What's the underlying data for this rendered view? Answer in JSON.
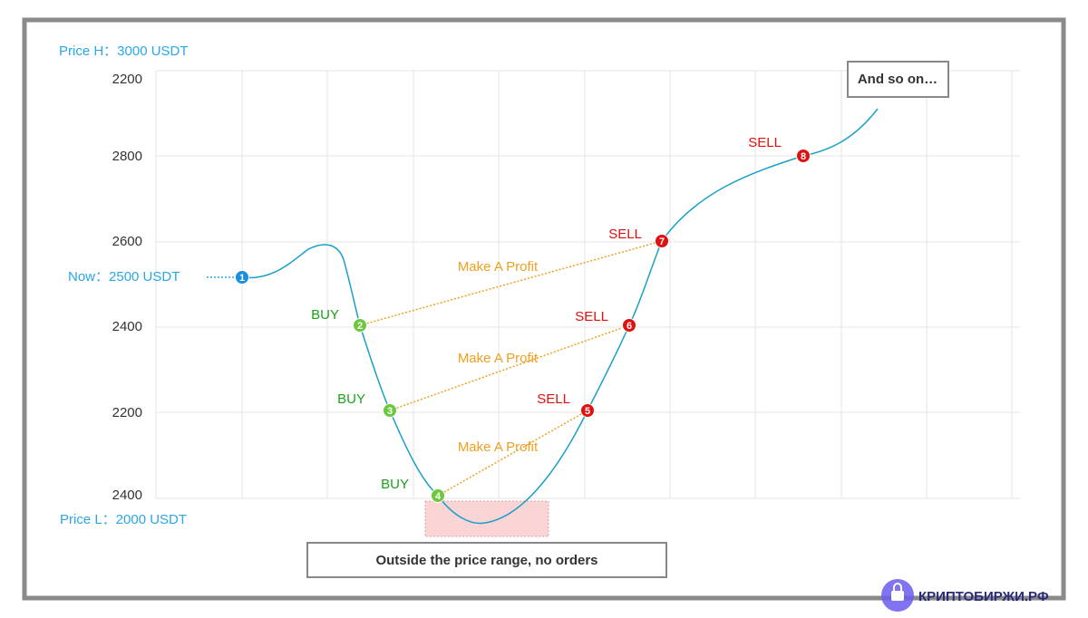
{
  "price_high": "Price H：3000 USDT",
  "price_now": "Now：2500 USDT",
  "price_low": "Price L：2000 USDT",
  "y_labels": [
    "2200",
    "2800",
    "2600",
    "2400",
    "2200",
    "2400"
  ],
  "points": [
    {
      "number": "1"
    },
    {
      "number": "2",
      "label": "BUY"
    },
    {
      "number": "3",
      "label": "BUY"
    },
    {
      "number": "4",
      "label": "BUY"
    },
    {
      "number": "5",
      "label": "SELL"
    },
    {
      "number": "6",
      "label": "SELL"
    },
    {
      "number": "7",
      "label": "SELL"
    },
    {
      "number": "8",
      "label": "SELL"
    }
  ],
  "profit_labels": [
    "Make A Profit",
    "Make A Profit",
    "Make A Profit"
  ],
  "callouts": {
    "end": "And so on…",
    "outside": "Outside the price range, no orders"
  },
  "watermark": "КРИПТОБИРЖИ.РФ"
}
